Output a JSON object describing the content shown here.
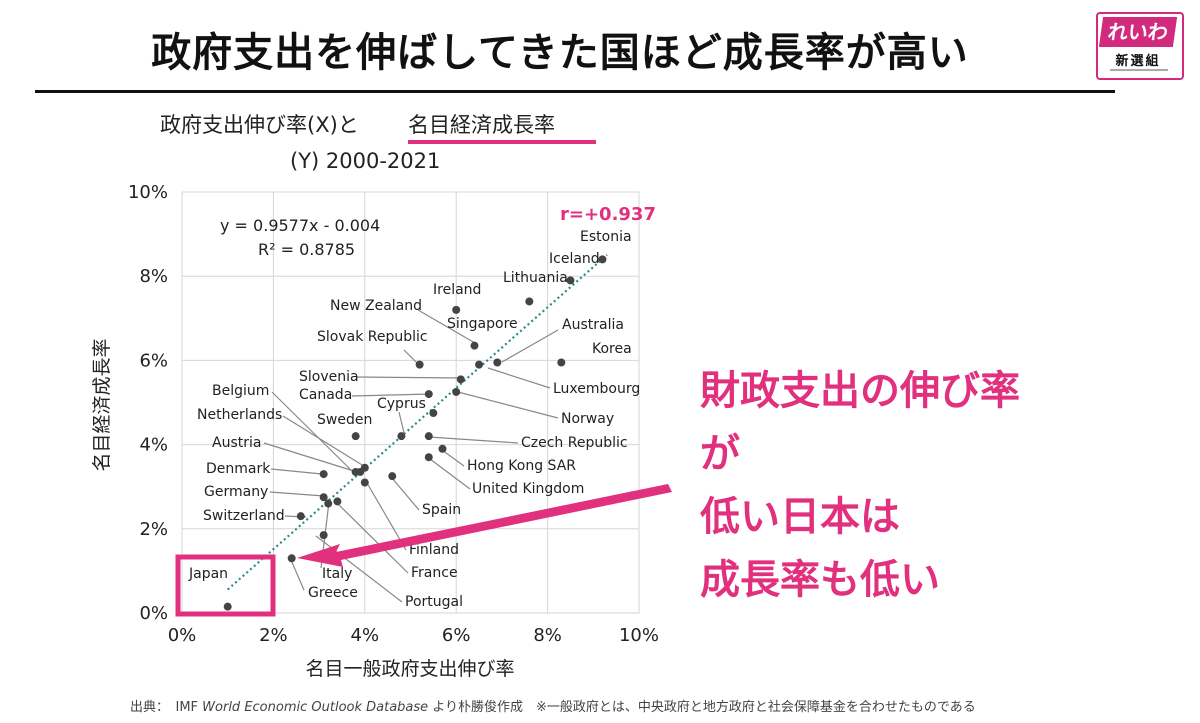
{
  "slide": {
    "title": "政府支出を伸ばしてきた国ほど成長率が高い",
    "logo_top": "れいわ",
    "logo_bottom": "新選組",
    "callout_lines": [
      "財政支出の伸び率が",
      "低い日本は",
      "成長率も低い"
    ],
    "source_prefix": "出典：　IMF ",
    "source_italic": "World Economic Outlook Database",
    "source_suffix": " より朴勝俊作成　※一般政府とは、中央政府と地方政府と社会保障基金を合わせたものである"
  },
  "colors": {
    "accent": "#e0307e",
    "point": "#444444",
    "trend": "#2a8a8a",
    "leader": "#888888"
  },
  "chart_data": {
    "type": "scatter",
    "title_line1_a": "政府支出伸び率(X)と",
    "title_line1_b": "名目経済成長率",
    "title_line2": "(Y) 2000-2021",
    "xlabel": "名目一般政府支出伸び率",
    "ylabel": "名目経済成長率",
    "xlim": [
      0,
      10
    ],
    "ylim": [
      0,
      10
    ],
    "xticks": [
      "0%",
      "2%",
      "4%",
      "6%",
      "8%",
      "10%"
    ],
    "yticks": [
      "0%",
      "2%",
      "4%",
      "6%",
      "8%",
      "10%"
    ],
    "grid": true,
    "equation": "y = 0.9577x - 0.004",
    "r2": "R² = 0.8785",
    "r_label": "r=+0.937",
    "trend": {
      "slope": 0.9577,
      "intercept": -0.4,
      "x_start": 1.0,
      "x_end": 9.3
    },
    "highlight_label": "Japan",
    "points": [
      {
        "name": "Estonia",
        "x": 9.2,
        "y": 8.4
      },
      {
        "name": "Iceland",
        "x": 8.5,
        "y": 7.9
      },
      {
        "name": "Lithuania",
        "x": 7.6,
        "y": 7.4
      },
      {
        "name": "Ireland",
        "x": 6.0,
        "y": 7.2
      },
      {
        "name": "New Zealand",
        "x": 6.4,
        "y": 6.35
      },
      {
        "name": "Singapore",
        "x": 6.1,
        "y": 5.55
      },
      {
        "name": "Australia",
        "x": 6.9,
        "y": 5.95
      },
      {
        "name": "Korea",
        "x": 8.3,
        "y": 5.95
      },
      {
        "name": "Slovak Republic",
        "x": 5.2,
        "y": 5.9
      },
      {
        "name": "Luxembourg",
        "x": 6.5,
        "y": 5.9
      },
      {
        "name": "Slovenia",
        "x": 5.4,
        "y": 5.2
      },
      {
        "name": "Canada",
        "x": 6.0,
        "y": 5.25
      },
      {
        "name": "Norway",
        "x": 5.5,
        "y": 4.75
      },
      {
        "name": "Cyprus",
        "x": 4.8,
        "y": 4.2
      },
      {
        "name": "Sweden",
        "x": 3.8,
        "y": 4.2
      },
      {
        "name": "Czech Republic",
        "x": 5.4,
        "y": 4.2
      },
      {
        "name": "Hong Kong SAR",
        "x": 5.7,
        "y": 3.9
      },
      {
        "name": "United Kingdom",
        "x": 5.4,
        "y": 3.7
      },
      {
        "name": "Belgium",
        "x": 3.8,
        "y": 3.35
      },
      {
        "name": "Netherlands",
        "x": 4.0,
        "y": 3.45
      },
      {
        "name": "Austria",
        "x": 3.9,
        "y": 3.35
      },
      {
        "name": "Denmark",
        "x": 3.1,
        "y": 3.3
      },
      {
        "name": "Spain",
        "x": 4.6,
        "y": 3.25
      },
      {
        "name": "Germany",
        "x": 3.1,
        "y": 2.75
      },
      {
        "name": "Finland",
        "x": 4.0,
        "y": 3.1
      },
      {
        "name": "France",
        "x": 3.4,
        "y": 2.65
      },
      {
        "name": "Switzerland",
        "x": 2.6,
        "y": 2.3
      },
      {
        "name": "Portugal",
        "x": 3.1,
        "y": 1.85
      },
      {
        "name": "Italy",
        "x": 3.2,
        "y": 2.6
      },
      {
        "name": "Greece",
        "x": 2.4,
        "y": 1.3
      },
      {
        "name": "Japan",
        "x": 1.0,
        "y": 0.15
      }
    ]
  }
}
